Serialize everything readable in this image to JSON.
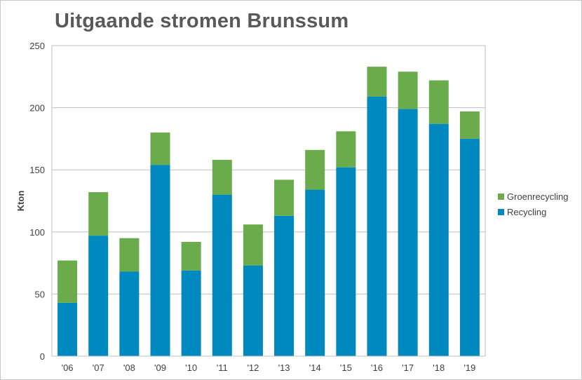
{
  "chart_data": {
    "type": "bar",
    "stacked": true,
    "title": "Uitgaande stromen Brunssum",
    "xlabel": "",
    "ylabel": "Kton",
    "ylim": [
      0,
      250
    ],
    "yticks": [
      0,
      50,
      100,
      150,
      200,
      250
    ],
    "grid": true,
    "legend_position": "right",
    "categories": [
      "'06",
      "'07",
      "'08",
      "'09",
      "'10",
      "'11",
      "'12",
      "'13",
      "'14",
      "'15",
      "'16",
      "'17",
      "'18",
      "'19"
    ],
    "series": [
      {
        "name": "Recycling",
        "color": "#0089bf",
        "values": [
          43,
          97,
          68,
          154,
          69,
          130,
          73,
          113,
          134,
          152,
          209,
          199,
          187,
          175
        ]
      },
      {
        "name": "Groenrecycling",
        "color": "#6aab4c",
        "values": [
          34,
          35,
          27,
          26,
          23,
          28,
          33,
          29,
          32,
          29,
          24,
          30,
          35,
          22
        ]
      }
    ],
    "legend_order": [
      "Groenrecycling",
      "Recycling"
    ]
  }
}
